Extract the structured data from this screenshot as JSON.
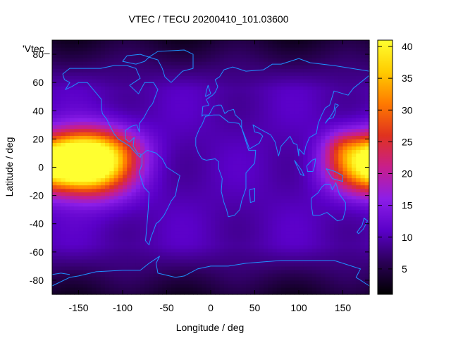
{
  "chart_data": {
    "type": "heatmap",
    "title": "VTEC / TECU 20200410_101.03600",
    "xlabel": "Longitude / deg",
    "ylabel": "Latitude / deg",
    "xlim": [
      -180,
      180
    ],
    "ylim": [
      -90,
      90
    ],
    "x_ticks": [
      -150,
      -100,
      -50,
      0,
      50,
      100,
      150
    ],
    "y_ticks": [
      -80,
      -60,
      -40,
      -20,
      0,
      20,
      40,
      60,
      80
    ],
    "colorbar": {
      "range": [
        1,
        41
      ],
      "ticks": [
        5,
        10,
        15,
        20,
        25,
        30,
        35,
        40
      ],
      "colormap": [
        "#000000",
        "#2a0055",
        "#5a00c8",
        "#8c1ee8",
        "#c81e8c",
        "#e0321e",
        "#ff7a00",
        "#ffcc00",
        "#ffff30"
      ]
    },
    "legend_label": "'Vtec_",
    "series_name": "Vtec",
    "grid_step_deg": [
      5,
      2.5
    ],
    "features": [
      {
        "lon": -150,
        "lat": 5,
        "lon_w": 28,
        "lat_w": 13,
        "amp": 29
      },
      {
        "lon": -125,
        "lat": 2,
        "lon_w": 30,
        "lat_w": 16,
        "amp": 20
      },
      {
        "lon": 170,
        "lat": 2,
        "lon_w": 28,
        "lat_w": 14,
        "amp": 20
      },
      {
        "lon": 150,
        "lat": 15,
        "lon_w": 15,
        "lat_w": 8,
        "amp": 6
      },
      {
        "lon": -100,
        "lat": 15,
        "lon_w": 25,
        "lat_w": 10,
        "amp": 4
      }
    ],
    "background_level": 10,
    "polar_level": 4
  }
}
